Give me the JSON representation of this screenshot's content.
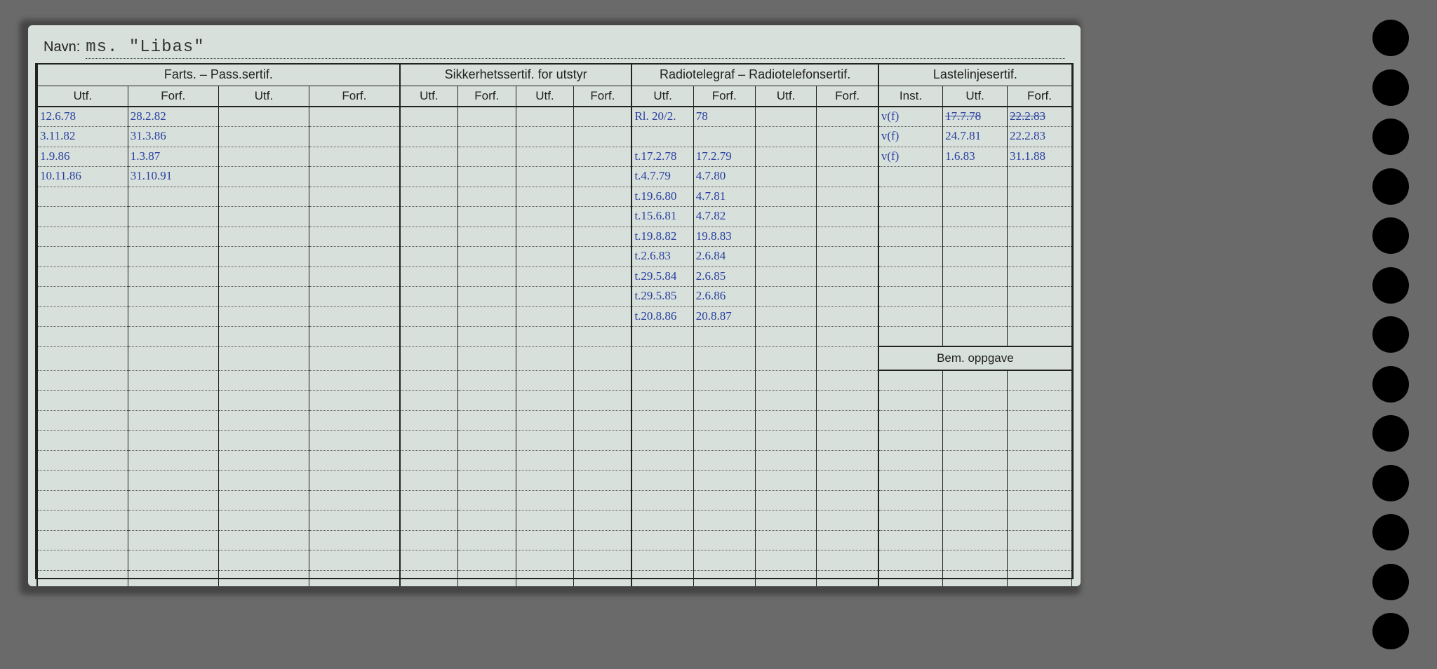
{
  "name_label": "Navn:",
  "name_value": "ms. \"Libas\"",
  "sections": {
    "farts": "Farts. – Pass.sertif.",
    "sikk": "Sikkerhetssertif. for utstyr",
    "radio": "Radiotelegraf – Radiotelefonsertif.",
    "laste": "Lastelinjesertif."
  },
  "sub": {
    "utf": "Utf.",
    "forf": "Forf.",
    "inst": "Inst."
  },
  "bem_label": "Bem. oppgave",
  "colors": {
    "paper": "#d7e0db",
    "ink": "#222222",
    "handwriting": "#2a3fa0",
    "background": "#6a6a6a"
  },
  "num_rows": 24,
  "bem_after_row": 12,
  "farts_rows": [
    [
      "12.6.78",
      "28.2.82",
      "",
      ""
    ],
    [
      "3.11.82",
      "31.3.86",
      "",
      ""
    ],
    [
      "1.9.86",
      "1.3.87",
      "",
      ""
    ],
    [
      "10.11.86",
      "31.10.91",
      "",
      ""
    ]
  ],
  "radio_rows": [
    [
      "Rl. 20/2.",
      "78",
      "",
      ""
    ],
    [
      "",
      "",
      "",
      ""
    ],
    [
      "t.17.2.78",
      "17.2.79",
      "",
      ""
    ],
    [
      "t.4.7.79",
      "4.7.80",
      "",
      ""
    ],
    [
      "t.19.6.80",
      "4.7.81",
      "",
      ""
    ],
    [
      "t.15.6.81",
      "4.7.82",
      "",
      ""
    ],
    [
      "t.19.8.82",
      "19.8.83",
      "",
      ""
    ],
    [
      "t.2.6.83",
      "2.6.84",
      "",
      ""
    ],
    [
      "t.29.5.84",
      "2.6.85",
      "",
      ""
    ],
    [
      "t.29.5.85",
      "2.6.86",
      "",
      ""
    ],
    [
      "t.20.8.86",
      "20.8.87",
      "",
      ""
    ]
  ],
  "laste_rows": [
    [
      "v(f)",
      "17.7.78",
      "22.2.83"
    ],
    [
      "v(f)",
      "24.7.81",
      "22.2.83"
    ],
    [
      "v(f)",
      "1.6.83",
      "31.1.88"
    ]
  ],
  "laste_strike": [
    [
      0,
      1
    ],
    [
      0,
      2
    ]
  ],
  "num_holes": 13
}
